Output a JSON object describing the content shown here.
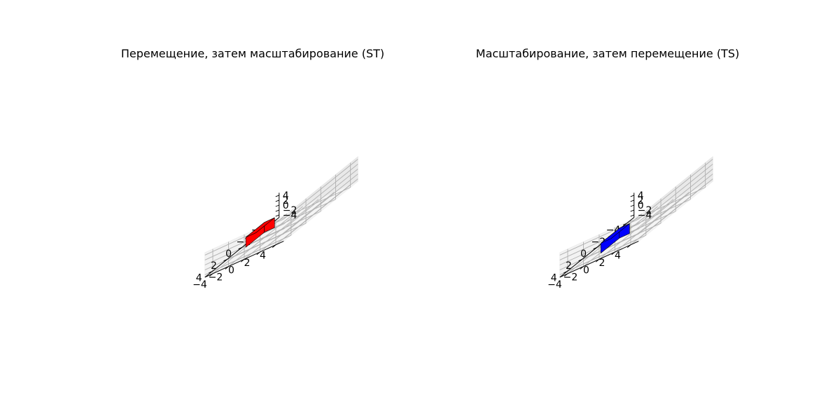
{
  "chart_data": [
    {
      "type": "3d-bar",
      "title": "Перемещение, затем масштабирование (ST)",
      "xlim": [
        -5,
        5
      ],
      "ylim": [
        -5,
        5
      ],
      "zlim": [
        -5,
        5
      ],
      "xticks": [
        "−4",
        "−2",
        "0",
        "2",
        "4"
      ],
      "yticks": [
        "−4",
        "−2",
        "0",
        "2",
        "4"
      ],
      "zticks": [
        "−4",
        "−2",
        "0",
        "2",
        "4"
      ],
      "grid": true,
      "box": {
        "x": [
          0.6,
          3.1
        ],
        "y": [
          -1.6,
          -0.3
        ],
        "z": [
          -2.4,
          1.6
        ]
      },
      "color": "#ff0000"
    },
    {
      "type": "3d-bar",
      "title": "Масштабирование, затем перемещение (TS)",
      "xlim": [
        -5,
        5
      ],
      "ylim": [
        -5,
        5
      ],
      "zlim": [
        -5,
        5
      ],
      "xticks": [
        "−4",
        "−2",
        "0",
        "2",
        "4"
      ],
      "yticks": [
        "−4",
        "−2",
        "0",
        "2",
        "4"
      ],
      "zticks": [
        "−4",
        "−2",
        "0",
        "2",
        "4"
      ],
      "grid": true,
      "box": {
        "x": [
          0.8,
          3.3
        ],
        "y": [
          -1.4,
          -0.1
        ],
        "z": [
          -4.6,
          -0.6
        ]
      },
      "color": "#0000ff"
    }
  ]
}
